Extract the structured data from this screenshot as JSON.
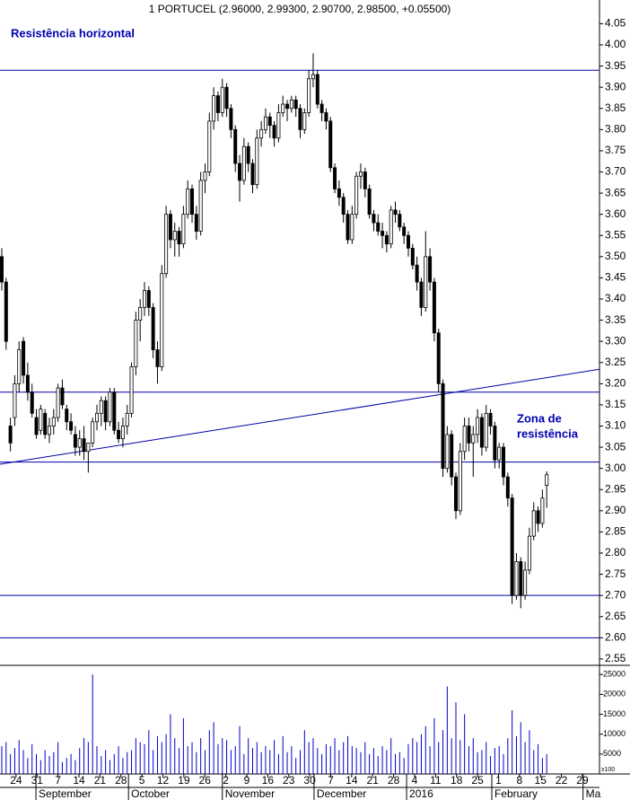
{
  "chart_data": {
    "type": "candlestick",
    "title": "1 PORTUCEL (2.96000, 2.99300, 2.90700, 2.98500, +0.05500)",
    "annotations": [
      "Resistência horizontal",
      "Zona de",
      "resistência"
    ],
    "annotation_color": "#0000b0",
    "open": [
      3.5,
      3.44,
      3.1,
      3.12,
      3.2,
      3.3,
      3.22,
      3.18,
      3.12,
      3.09,
      3.13,
      3.08,
      3.1,
      3.12,
      3.19,
      3.14,
      3.11,
      3.08,
      3.05,
      3.07,
      3.04,
      3.06,
      3.11,
      3.13,
      3.16,
      3.11,
      3.18,
      3.09,
      3.07,
      3.1,
      3.13,
      3.24,
      3.35,
      3.38,
      3.42,
      3.38,
      3.28,
      3.24,
      3.46,
      3.6,
      3.54,
      3.56,
      3.53,
      3.6,
      3.66,
      3.6,
      3.56,
      3.68,
      3.7,
      3.82,
      3.88,
      3.84,
      3.9,
      3.85,
      3.8,
      3.72,
      3.68,
      3.76,
      3.72,
      3.67,
      3.78,
      3.8,
      3.83,
      3.81,
      3.78,
      3.84,
      3.86,
      3.85,
      3.87,
      3.85,
      3.8,
      3.84,
      3.92,
      3.93,
      3.86,
      3.84,
      3.82,
      3.71,
      3.66,
      3.64,
      3.6,
      3.54,
      3.6,
      3.69,
      3.7,
      3.66,
      3.6,
      3.58,
      3.56,
      3.55,
      3.53,
      3.61,
      3.6,
      3.57,
      3.55,
      3.52,
      3.48,
      3.44,
      3.38,
      3.5,
      3.44,
      3.32,
      3.2,
      3.0,
      3.08,
      2.98,
      2.9,
      3.04,
      3.1,
      3.06,
      3.08,
      3.12,
      3.05,
      3.13,
      3.1,
      3.02,
      3.05,
      2.98,
      2.93,
      2.7,
      2.78,
      2.7,
      2.76,
      2.84,
      2.9,
      2.87,
      2.96
    ],
    "high": [
      3.52,
      3.45,
      3.12,
      3.22,
      3.3,
      3.31,
      3.25,
      3.2,
      3.14,
      3.15,
      3.14,
      3.12,
      3.14,
      3.2,
      3.21,
      3.15,
      3.13,
      3.1,
      3.09,
      3.1,
      3.06,
      3.12,
      3.15,
      3.17,
      3.17,
      3.19,
      3.19,
      3.11,
      3.12,
      3.15,
      3.25,
      3.37,
      3.4,
      3.44,
      3.43,
      3.39,
      3.3,
      3.48,
      3.62,
      3.61,
      3.58,
      3.57,
      3.62,
      3.68,
      3.67,
      3.62,
      3.7,
      3.72,
      3.84,
      3.9,
      3.89,
      3.92,
      3.91,
      3.86,
      3.81,
      3.74,
      3.78,
      3.77,
      3.73,
      3.8,
      3.82,
      3.85,
      3.84,
      3.82,
      3.86,
      3.88,
      3.87,
      3.88,
      3.88,
      3.86,
      3.85,
      3.94,
      3.98,
      3.94,
      3.87,
      3.85,
      3.83,
      3.72,
      3.68,
      3.65,
      3.61,
      3.62,
      3.7,
      3.72,
      3.71,
      3.67,
      3.61,
      3.6,
      3.58,
      3.56,
      3.62,
      3.63,
      3.61,
      3.58,
      3.56,
      3.53,
      3.5,
      3.45,
      3.56,
      3.52,
      3.45,
      3.33,
      3.21,
      3.1,
      3.09,
      2.99,
      3.06,
      3.12,
      3.12,
      3.1,
      3.14,
      3.13,
      3.15,
      3.14,
      3.11,
      3.06,
      3.06,
      2.99,
      2.94,
      2.8,
      2.79,
      2.78,
      2.86,
      2.92,
      2.91,
      2.95,
      2.993
    ],
    "low": [
      3.42,
      3.28,
      3.04,
      3.1,
      3.18,
      3.2,
      3.16,
      3.12,
      3.07,
      3.08,
      3.07,
      3.06,
      3.08,
      3.11,
      3.14,
      3.09,
      3.08,
      3.03,
      3.03,
      3.02,
      2.99,
      3.05,
      3.09,
      3.1,
      3.09,
      3.1,
      3.08,
      3.06,
      3.05,
      3.08,
      3.12,
      3.22,
      3.3,
      3.36,
      3.36,
      3.26,
      3.2,
      3.23,
      3.45,
      3.52,
      3.5,
      3.5,
      3.52,
      3.59,
      3.58,
      3.54,
      3.55,
      3.65,
      3.69,
      3.8,
      3.82,
      3.83,
      3.83,
      3.78,
      3.7,
      3.63,
      3.67,
      3.7,
      3.65,
      3.66,
      3.76,
      3.79,
      3.78,
      3.76,
      3.77,
      3.83,
      3.82,
      3.84,
      3.83,
      3.78,
      3.79,
      3.83,
      3.9,
      3.85,
      3.82,
      3.8,
      3.7,
      3.65,
      3.62,
      3.58,
      3.53,
      3.53,
      3.59,
      3.66,
      3.64,
      3.59,
      3.56,
      3.55,
      3.52,
      3.51,
      3.52,
      3.58,
      3.56,
      3.53,
      3.5,
      3.47,
      3.42,
      3.36,
      3.37,
      3.42,
      3.3,
      3.18,
      2.98,
      2.99,
      2.96,
      2.88,
      2.89,
      3.02,
      3.04,
      2.98,
      3.06,
      3.03,
      3.04,
      3.08,
      3.0,
      3.0,
      2.96,
      2.91,
      2.68,
      2.69,
      2.67,
      2.69,
      2.75,
      2.83,
      2.85,
      2.86,
      2.907
    ],
    "close": [
      3.44,
      3.3,
      3.06,
      3.2,
      3.28,
      3.22,
      3.18,
      3.13,
      3.08,
      3.14,
      3.08,
      3.1,
      3.12,
      3.19,
      3.15,
      3.11,
      3.09,
      3.05,
      3.07,
      3.04,
      3.06,
      3.11,
      3.13,
      3.16,
      3.11,
      3.18,
      3.09,
      3.07,
      3.1,
      3.13,
      3.24,
      3.35,
      3.38,
      3.42,
      3.38,
      3.28,
      3.24,
      3.46,
      3.6,
      3.54,
      3.56,
      3.53,
      3.6,
      3.66,
      3.6,
      3.56,
      3.68,
      3.7,
      3.82,
      3.88,
      3.84,
      3.9,
      3.85,
      3.8,
      3.72,
      3.68,
      3.76,
      3.72,
      3.67,
      3.78,
      3.8,
      3.83,
      3.81,
      3.78,
      3.84,
      3.86,
      3.85,
      3.87,
      3.85,
      3.8,
      3.84,
      3.92,
      3.93,
      3.86,
      3.84,
      3.82,
      3.71,
      3.66,
      3.64,
      3.6,
      3.54,
      3.6,
      3.69,
      3.7,
      3.66,
      3.6,
      3.58,
      3.56,
      3.55,
      3.53,
      3.61,
      3.6,
      3.57,
      3.55,
      3.52,
      3.48,
      3.44,
      3.38,
      3.5,
      3.44,
      3.32,
      3.2,
      3.0,
      3.08,
      2.98,
      2.9,
      3.04,
      3.1,
      3.06,
      3.08,
      3.12,
      3.05,
      3.13,
      3.1,
      3.02,
      3.05,
      2.98,
      2.93,
      2.7,
      2.78,
      2.7,
      2.76,
      2.84,
      2.9,
      2.87,
      2.93,
      2.985
    ],
    "xlim": [
      -0.41,
      138.2
    ],
    "ylim": [
      2.535,
      4.106
    ],
    "yticks": [
      {
        "value": 2.55,
        "label": "2.55"
      },
      {
        "value": 2.6,
        "label": "2.60"
      },
      {
        "value": 2.65,
        "label": "2.65"
      },
      {
        "value": 2.7,
        "label": "2.70"
      },
      {
        "value": 2.75,
        "label": "2.75"
      },
      {
        "value": 2.8,
        "label": "2.80"
      },
      {
        "value": 2.85,
        "label": "2.85"
      },
      {
        "value": 2.9,
        "label": "2.90"
      },
      {
        "value": 2.95,
        "label": "2.95"
      },
      {
        "value": 3.0,
        "label": "3.00"
      },
      {
        "value": 3.05,
        "label": "3.05"
      },
      {
        "value": 3.1,
        "label": "3.10"
      },
      {
        "value": 3.15,
        "label": "3.15"
      },
      {
        "value": 3.2,
        "label": "3.20"
      },
      {
        "value": 3.25,
        "label": "3.25"
      },
      {
        "value": 3.3,
        "label": "3.30"
      },
      {
        "value": 3.35,
        "label": "3.35"
      },
      {
        "value": 3.4,
        "label": "3.40"
      },
      {
        "value": 3.45,
        "label": "3.45"
      },
      {
        "value": 3.5,
        "label": "3.50"
      },
      {
        "value": 3.55,
        "label": "3.55"
      },
      {
        "value": 3.6,
        "label": "3.60"
      },
      {
        "value": 3.65,
        "label": "3.65"
      },
      {
        "value": 3.7,
        "label": "3.70"
      },
      {
        "value": 3.75,
        "label": "3.75"
      },
      {
        "value": 3.8,
        "label": "3.80"
      },
      {
        "value": 3.85,
        "label": "3.85"
      },
      {
        "value": 3.9,
        "label": "3.90"
      },
      {
        "value": 3.95,
        "label": "3.95"
      },
      {
        "value": 4.0,
        "label": "4.00"
      },
      {
        "value": 4.05,
        "label": "4.05"
      }
    ],
    "xticks": [
      {
        "value": 3.3,
        "label": "24"
      },
      {
        "value": 8.15,
        "label": "31"
      },
      {
        "value": 13,
        "label": "7"
      },
      {
        "value": 17.85,
        "label": "14"
      },
      {
        "value": 22.7,
        "label": "21"
      },
      {
        "value": 27.55,
        "label": "28"
      },
      {
        "value": 32.4,
        "label": "5"
      },
      {
        "value": 37.25,
        "label": "12"
      },
      {
        "value": 42.1,
        "label": "19"
      },
      {
        "value": 46.95,
        "label": "26"
      },
      {
        "value": 51.8,
        "label": "2"
      },
      {
        "value": 56.65,
        "label": "9"
      },
      {
        "value": 61.5,
        "label": "16"
      },
      {
        "value": 66.35,
        "label": "23"
      },
      {
        "value": 71.2,
        "label": "30"
      },
      {
        "value": 76.05,
        "label": "7"
      },
      {
        "value": 80.9,
        "label": "14"
      },
      {
        "value": 85.75,
        "label": "21"
      },
      {
        "value": 90.6,
        "label": "28"
      },
      {
        "value": 95.45,
        "label": "4"
      },
      {
        "value": 100.3,
        "label": "11"
      },
      {
        "value": 105.15,
        "label": "18"
      },
      {
        "value": 110,
        "label": "25"
      },
      {
        "value": 114.85,
        "label": "1"
      },
      {
        "value": 119.7,
        "label": "8"
      },
      {
        "value": 124.55,
        "label": "15"
      },
      {
        "value": 129.4,
        "label": "22"
      },
      {
        "value": 134.25,
        "label": "29"
      }
    ],
    "month_ticks": [
      {
        "value": 7.9,
        "label": "September"
      },
      {
        "value": 29.3,
        "label": "October"
      },
      {
        "value": 51.0,
        "label": "November"
      },
      {
        "value": 72.2,
        "label": "December"
      },
      {
        "value": 93.6,
        "label": "2016"
      },
      {
        "value": 113.3,
        "label": "February"
      },
      {
        "value": 134.4,
        "label": "Ma"
      }
    ],
    "hlines": [
      3.94,
      3.18,
      3.015,
      2.7,
      2.6
    ],
    "trendline": {
      "x": [
        -0.41,
        138.2
      ],
      "y": [
        3.01,
        3.234
      ]
    },
    "line_color": "#0000aa",
    "volume": {
      "values": [
        7000,
        8000,
        5000,
        6500,
        8500,
        6000,
        4000,
        7500,
        5000,
        3500,
        6000,
        4500,
        5500,
        8000,
        3000,
        4000,
        5000,
        3500,
        6500,
        9000,
        8000,
        25000,
        7000,
        4500,
        6000,
        3500,
        5000,
        7000,
        4000,
        5500,
        6000,
        9000,
        8000,
        7500,
        11000,
        6000,
        9500,
        8000,
        10000,
        15000,
        9000,
        6500,
        14000,
        7000,
        8000,
        5500,
        9000,
        6000,
        11000,
        13000,
        7500,
        9000,
        8500,
        6000,
        7000,
        12000,
        5000,
        9000,
        6500,
        8000,
        5500,
        7000,
        6000,
        8500,
        5000,
        9500,
        5500,
        7000,
        4000,
        6000,
        11000,
        8000,
        9000,
        6500,
        5000,
        7500,
        7000,
        9000,
        6000,
        8000,
        9500,
        7000,
        6500,
        5500,
        8000,
        5000,
        6500,
        4500,
        7000,
        6000,
        9000,
        5000,
        5500,
        4000,
        7500,
        9000,
        8000,
        10000,
        12000,
        7000,
        14000,
        8000,
        11000,
        22000,
        9000,
        18000,
        8500,
        15000,
        7000,
        9000,
        5500,
        6000,
        8000,
        4500,
        6500,
        7000,
        5000,
        9000,
        16000,
        9500,
        13000,
        8000,
        11000,
        6000,
        7500,
        4000,
        5000
      ],
      "ylim": [
        0,
        27300
      ],
      "yticks": [
        5000,
        10000,
        15000,
        20000,
        25000
      ],
      "unit_label": "x100",
      "color": "#0000cc"
    }
  }
}
